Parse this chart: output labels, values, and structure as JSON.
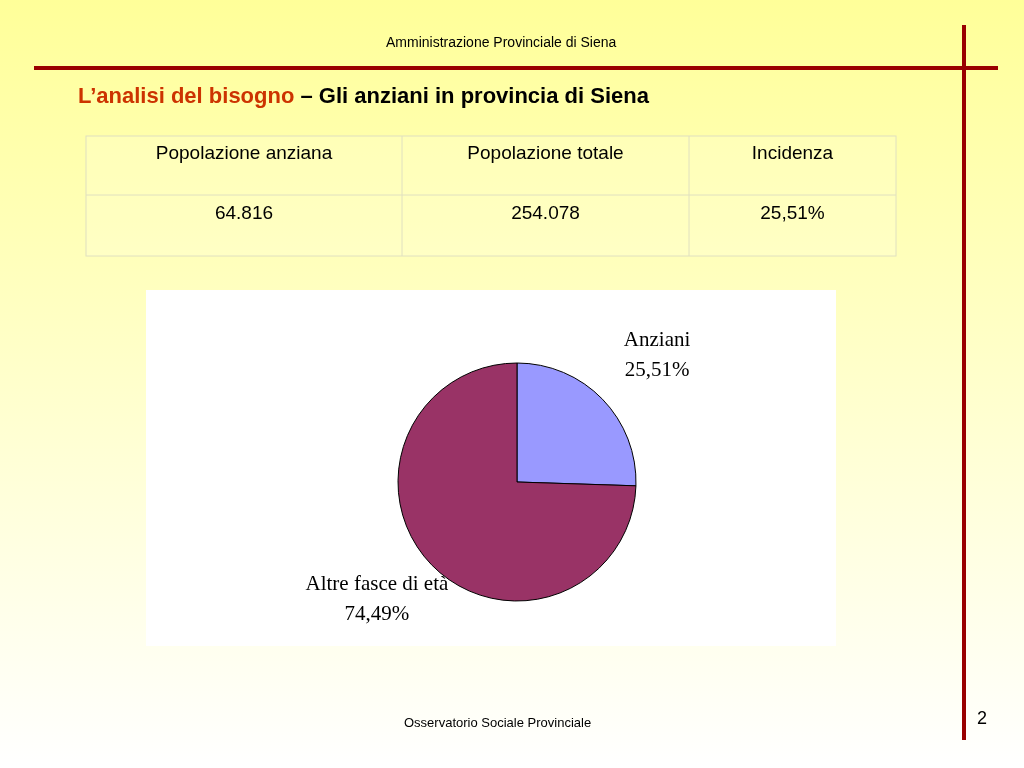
{
  "chart_data": {
    "type": "pie",
    "title": "L’analisi del bisogno",
    "subtitle": "– Gli anziani in provincia di Siena",
    "categories": [
      "Anziani",
      "Altre fasce di età"
    ],
    "values": [
      25.51,
      74.49
    ],
    "value_labels": [
      "25,51%",
      "74,49%"
    ],
    "colors": [
      "#9999ff",
      "#993366"
    ],
    "annotations": [
      "Amministrazione Provinciale di Siena",
      "Popolazione anziana",
      "Popolazione totale",
      "Incidenza",
      "64.816",
      "254.078",
      "25,51%",
      "Osservatorio Sociale Provinciale",
      "2"
    ]
  }
}
